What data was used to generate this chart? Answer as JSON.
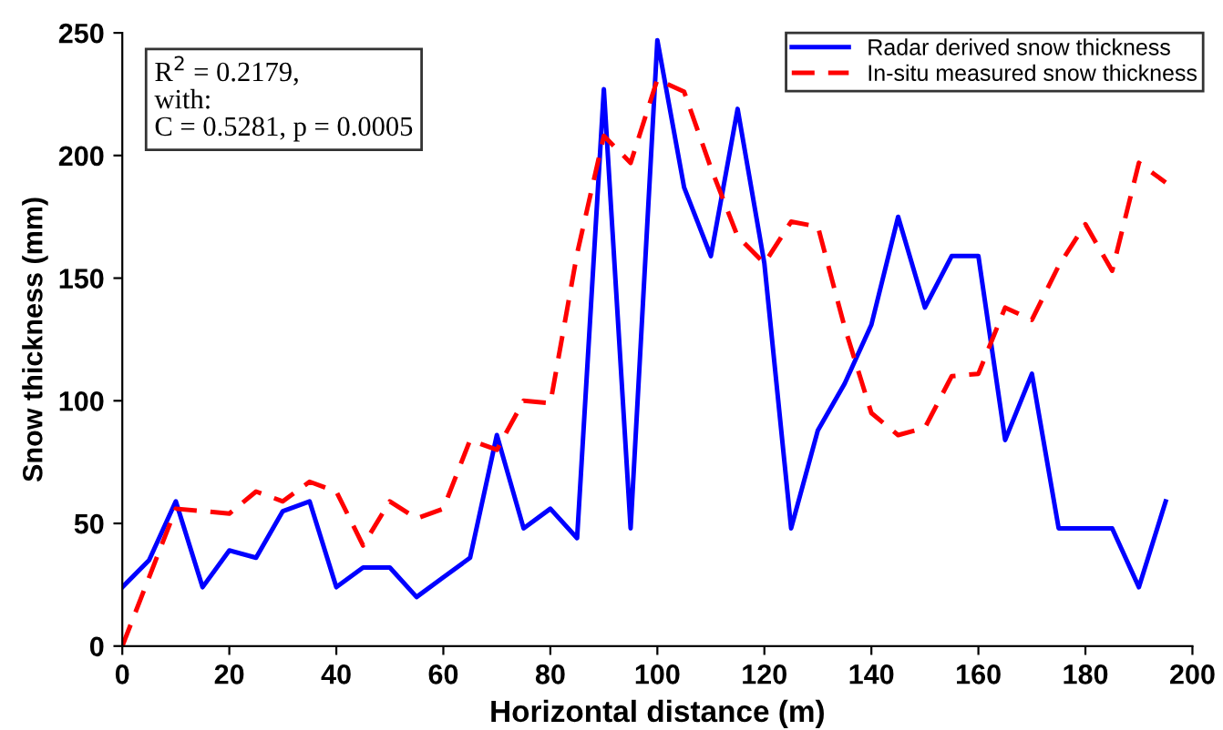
{
  "chart_data": {
    "type": "line",
    "xlabel": "Horizontal distance (m)",
    "ylabel": "Snow thickness (mm)",
    "x": [
      0,
      5,
      10,
      15,
      20,
      25,
      30,
      35,
      40,
      45,
      50,
      55,
      60,
      65,
      70,
      75,
      80,
      85,
      90,
      95,
      100,
      105,
      110,
      115,
      120,
      125,
      130,
      135,
      140,
      145,
      150,
      155,
      160,
      165,
      170,
      175,
      180,
      185,
      190,
      195
    ],
    "series": [
      {
        "name": "Radar derived snow thickness",
        "color": "#0000ff",
        "line_style": "solid",
        "values": [
          24,
          35,
          59,
          24,
          39,
          36,
          55,
          59,
          24,
          32,
          32,
          20,
          28,
          36,
          86,
          48,
          56,
          44,
          227,
          48,
          247,
          187,
          159,
          219,
          156,
          48,
          88,
          107,
          131,
          175,
          138,
          159,
          159,
          84,
          111,
          48,
          48,
          48,
          24,
          59
        ]
      },
      {
        "name": "In-situ measured snow thickness",
        "color": "#ff0000",
        "line_style": "dashed",
        "values": [
          0,
          28,
          56,
          55,
          54,
          63,
          59,
          67,
          63,
          41,
          59,
          52,
          56,
          84,
          80,
          100,
          99,
          160,
          208,
          197,
          231,
          226,
          195,
          167,
          156,
          173,
          171,
          130,
          95,
          86,
          89,
          110,
          111,
          138,
          133,
          155,
          172,
          153,
          197,
          189
        ]
      }
    ],
    "annotations": [
      "R$^{2}$ = 0.2179,\nwith:\nC = 0.5281, p = 0.0005"
    ],
    "xlim": [
      0,
      200
    ],
    "ylim": [
      0,
      250
    ],
    "xticks": [
      0,
      20,
      40,
      60,
      80,
      100,
      120,
      140,
      160,
      180,
      200
    ],
    "yticks": [
      0,
      50,
      100,
      150,
      200,
      250
    ],
    "grid": false,
    "legend": "top right",
    "marker": "none"
  }
}
